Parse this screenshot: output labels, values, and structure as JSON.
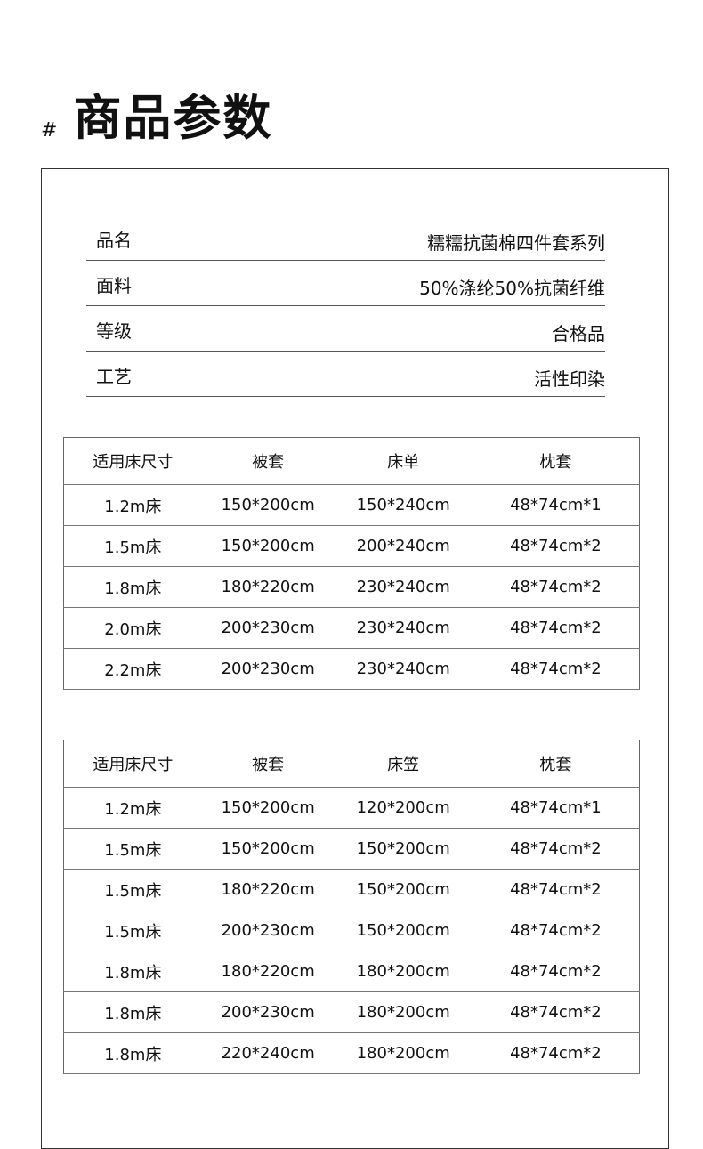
{
  "header": {
    "hash": "#",
    "title": "商品参数"
  },
  "params": [
    {
      "label": "品名",
      "value": "糯糯抗菌棉四件套系列"
    },
    {
      "label": "面料",
      "value": "50%涤纶50%抗菌纤维"
    },
    {
      "label": "等级",
      "value": "合格品"
    },
    {
      "label": "工艺",
      "value": "活性印染"
    }
  ],
  "table1": {
    "headers": [
      "适用床尺寸",
      "被套",
      "床单",
      "枕套"
    ],
    "rows": [
      [
        "1.2m床",
        "150*200cm",
        "150*240cm",
        "48*74cm*1"
      ],
      [
        "1.5m床",
        "150*200cm",
        "200*240cm",
        "48*74cm*2"
      ],
      [
        "1.8m床",
        "180*220cm",
        "230*240cm",
        "48*74cm*2"
      ],
      [
        "2.0m床",
        "200*230cm",
        "230*240cm",
        "48*74cm*2"
      ],
      [
        "2.2m床",
        "200*230cm",
        "230*240cm",
        "48*74cm*2"
      ]
    ]
  },
  "table2": {
    "headers": [
      "适用床尺寸",
      "被套",
      "床笠",
      "枕套"
    ],
    "rows": [
      [
        "1.2m床",
        "150*200cm",
        "120*200cm",
        "48*74cm*1"
      ],
      [
        "1.5m床",
        "150*200cm",
        "150*200cm",
        "48*74cm*2"
      ],
      [
        "1.5m床",
        "180*220cm",
        "150*200cm",
        "48*74cm*2"
      ],
      [
        "1.5m床",
        "200*230cm",
        "150*200cm",
        "48*74cm*2"
      ],
      [
        "1.8m床",
        "180*220cm",
        "180*200cm",
        "48*74cm*2"
      ],
      [
        "1.8m床",
        "200*230cm",
        "180*200cm",
        "48*74cm*2"
      ],
      [
        "1.8m床",
        "220*240cm",
        "180*200cm",
        "48*74cm*2"
      ]
    ]
  }
}
